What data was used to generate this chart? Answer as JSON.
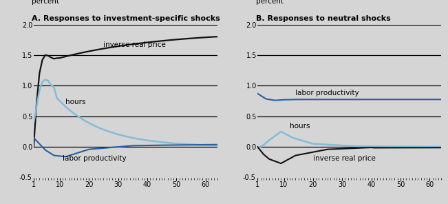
{
  "title_A": "A. Responses to investment-specific shocks",
  "title_B": "B. Responses to neutral shocks",
  "ylabel": "percent",
  "ylim": [
    -0.5,
    2.0
  ],
  "yticks": [
    0.0,
    0.5,
    1.0,
    1.5,
    2.0
  ],
  "ytick_labels": [
    "0.0",
    "0.5",
    "1.0",
    "1.5",
    "2.0"
  ],
  "xlim": [
    1,
    64
  ],
  "xticks": [
    1,
    10,
    20,
    30,
    40,
    50,
    60
  ],
  "xticklabels": [
    "1",
    "10",
    "20",
    "30",
    "40",
    "50",
    "60"
  ],
  "bg_color": "#d5d5d5",
  "hline_color": "#000000",
  "color_black": "#111111",
  "color_blue_dark": "#2a5fa5",
  "color_blue_light": "#85bbd8",
  "label_A_irp": "inverse real price",
  "label_A_hours": "hours",
  "label_A_lp": "labor productivity",
  "label_B_lp": "labor productivity",
  "label_B_hours": "hours",
  "label_B_irp": "inverse real price"
}
